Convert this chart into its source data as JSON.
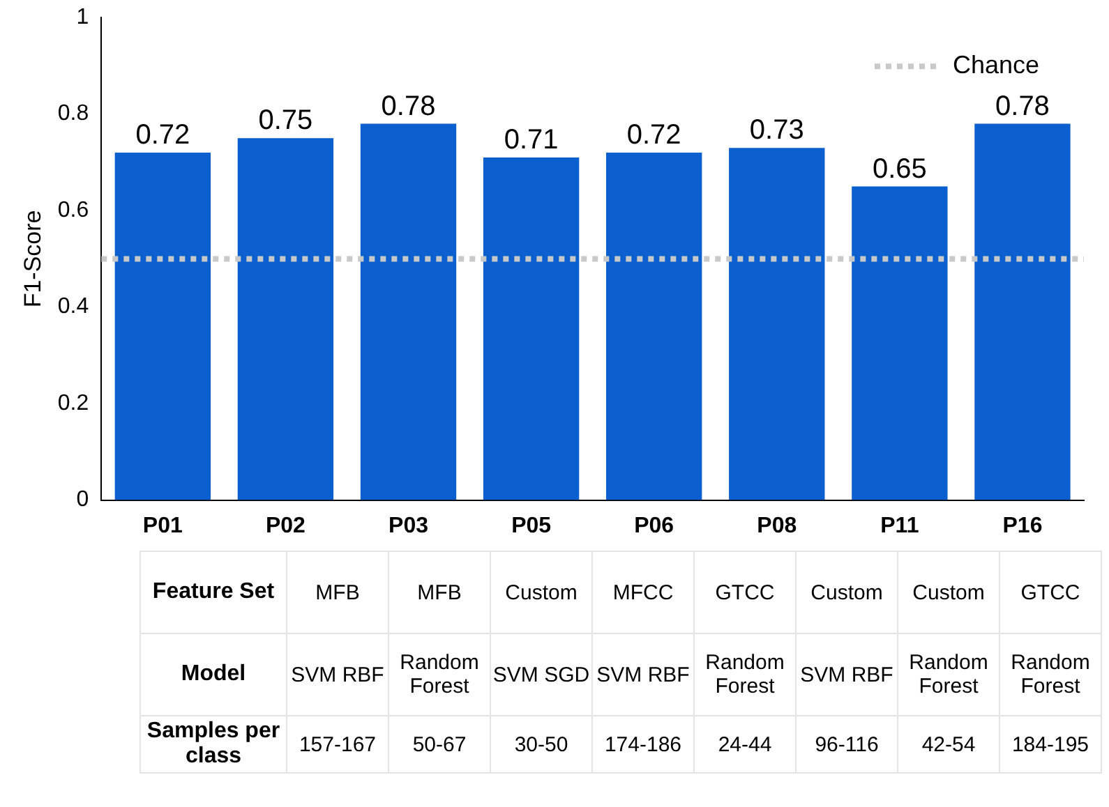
{
  "chart_data": {
    "type": "bar",
    "ylabel": "F1-Score",
    "categories": [
      "P01",
      "P02",
      "P03",
      "P05",
      "P06",
      "P08",
      "P11",
      "P16"
    ],
    "values": [
      0.72,
      0.75,
      0.78,
      0.71,
      0.72,
      0.73,
      0.65,
      0.78
    ],
    "color": "#0b5fce",
    "data_labels": true,
    "ylim": [
      0,
      1
    ],
    "yticks": [
      0,
      0.2,
      0.4,
      0.6,
      0.8,
      1
    ],
    "grid": false,
    "ref_lines": [
      {
        "axis": "y",
        "value": 0.5,
        "label": "Chance",
        "color": "#c8c8c8",
        "line_style": "dotted"
      }
    ],
    "legend": "top right",
    "annotations": [
      "Feature Set",
      "MFB",
      "MFB",
      "Custom",
      "MFCC",
      "GTCC",
      "Custom",
      "Custom",
      "GTCC",
      "Model",
      "SVM RBF",
      "Random Forest",
      "SVM SGD",
      "SVM RBF",
      "Random Forest",
      "SVM RBF",
      "Random Forest",
      "Random Forest",
      "Samples per class",
      "157-167",
      "50-67",
      "30-50",
      "174-186",
      "24-44",
      "96-116",
      "42-54",
      "184-195"
    ]
  }
}
